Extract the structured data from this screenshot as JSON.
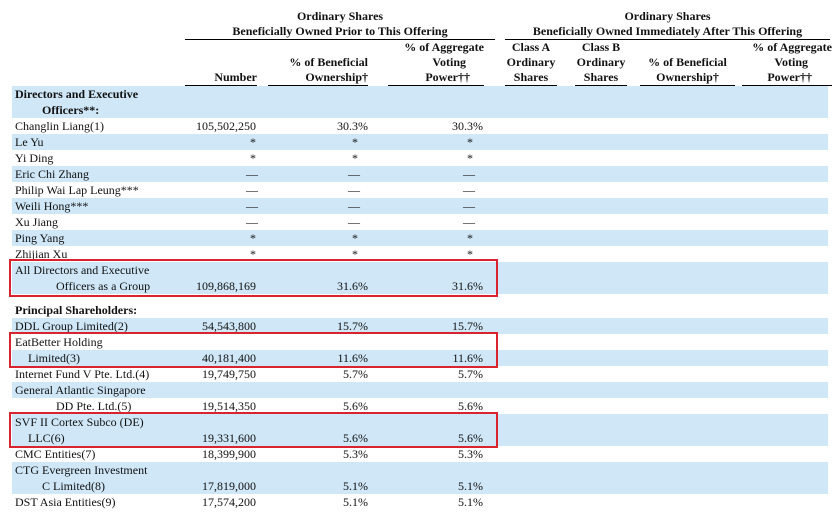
{
  "header": {
    "group1": {
      "line1": "Ordinary Shares",
      "line2": "Beneficially Owned Prior to This Offering"
    },
    "group2": {
      "line1": "Ordinary Shares",
      "line2": "Beneficially Owned Immediately After This Offering"
    },
    "col_number": "Number",
    "col_pct_l1": "% of Beneficial",
    "col_pct_l2": "Ownership†",
    "col_agg_l1": "% of Aggregate",
    "col_agg_l2": "Voting",
    "col_agg_l3": "Power††",
    "col_a_l1": "Class A",
    "col_a_l2": "Ordinary",
    "col_a_l3": "Shares",
    "col_b_l1": "Class B",
    "col_b_l2": "Ordinary",
    "col_b_l3": "Shares",
    "col_pct2_l1": "% of Beneficial",
    "col_pct2_l2": "Ownership†",
    "col_agg2_l1": "% of Aggregate",
    "col_agg2_l2": "Voting",
    "col_agg2_l3": "Power††"
  },
  "sections": {
    "directors_l1": "Directors and Executive",
    "directors_l2": "Officers**:",
    "principal": "Principal Shareholders:"
  },
  "rows": [
    {
      "name": "Changlin Liang",
      "fn": "(1)",
      "number": "105,502,250",
      "pct": "30.3%",
      "agg": "30.3%"
    },
    {
      "name": "Le Yu",
      "fn": "",
      "number": "*",
      "pct": "*",
      "agg": "*"
    },
    {
      "name": "Yi Ding",
      "fn": "",
      "number": "*",
      "pct": "*",
      "agg": "*"
    },
    {
      "name": "Eric Chi Zhang",
      "fn": "",
      "number": "—",
      "pct": "—",
      "agg": "—"
    },
    {
      "name": "Philip Wai Lap Leung***",
      "fn": "",
      "number": "—",
      "pct": "—",
      "agg": "—"
    },
    {
      "name": "Weili Hong***",
      "fn": "",
      "number": "—",
      "pct": "—",
      "agg": "—"
    },
    {
      "name": "Xu Jiang",
      "fn": "",
      "number": "—",
      "pct": "—",
      "agg": "—"
    },
    {
      "name": "Ping Yang",
      "fn": "",
      "number": "*",
      "pct": "*",
      "agg": "*"
    },
    {
      "name": "Zhijian Xu",
      "fn": "",
      "number": "*",
      "pct": "*",
      "agg": "*"
    }
  ],
  "group_total": {
    "l1": "All Directors and Executive",
    "l2": "Officers as a Group",
    "number": "109,868,169",
    "pct": "31.6%",
    "agg": "31.6%"
  },
  "principal_rows": {
    "ddl": {
      "name": "DDL Group Limited",
      "fn": "(2)",
      "number": "54,543,800",
      "pct": "15.7%",
      "agg": "15.7%"
    },
    "eatbetter": {
      "l1": "EatBetter Holding",
      "l2": "Limited",
      "fn": "(3)",
      "number": "40,181,400",
      "pct": "11.6%",
      "agg": "11.6%"
    },
    "internet": {
      "name": "Internet Fund V Pte. Ltd.",
      "fn": "(4)",
      "number": "19,749,750",
      "pct": "5.7%",
      "agg": "5.7%"
    },
    "ga": {
      "l1": "General Atlantic Singapore",
      "l2": "DD Pte. Ltd.",
      "fn": "(5)",
      "number": "19,514,350",
      "pct": "5.6%",
      "agg": "5.6%"
    },
    "svf": {
      "l1": "SVF II Cortex Subco (DE)",
      "l2": "LLC",
      "fn": "(6)",
      "number": "19,331,600",
      "pct": "5.6%",
      "agg": "5.6%"
    },
    "cmc": {
      "name": "CMC Entities",
      "fn": "(7)",
      "number": "18,399,900",
      "pct": "5.3%",
      "agg": "5.3%"
    },
    "ctg": {
      "l1": "CTG Evergreen Investment",
      "l2": "C Limited",
      "fn": "(8)",
      "number": "17,819,000",
      "pct": "5.1%",
      "agg": "5.1%"
    },
    "dst": {
      "name": "DST Asia Entities",
      "fn": "(9)",
      "number": "17,574,200",
      "pct": "5.1%",
      "agg": "5.1%"
    }
  },
  "colors": {
    "stripe": "#cfe7f7",
    "highlight": "#d9232e"
  }
}
